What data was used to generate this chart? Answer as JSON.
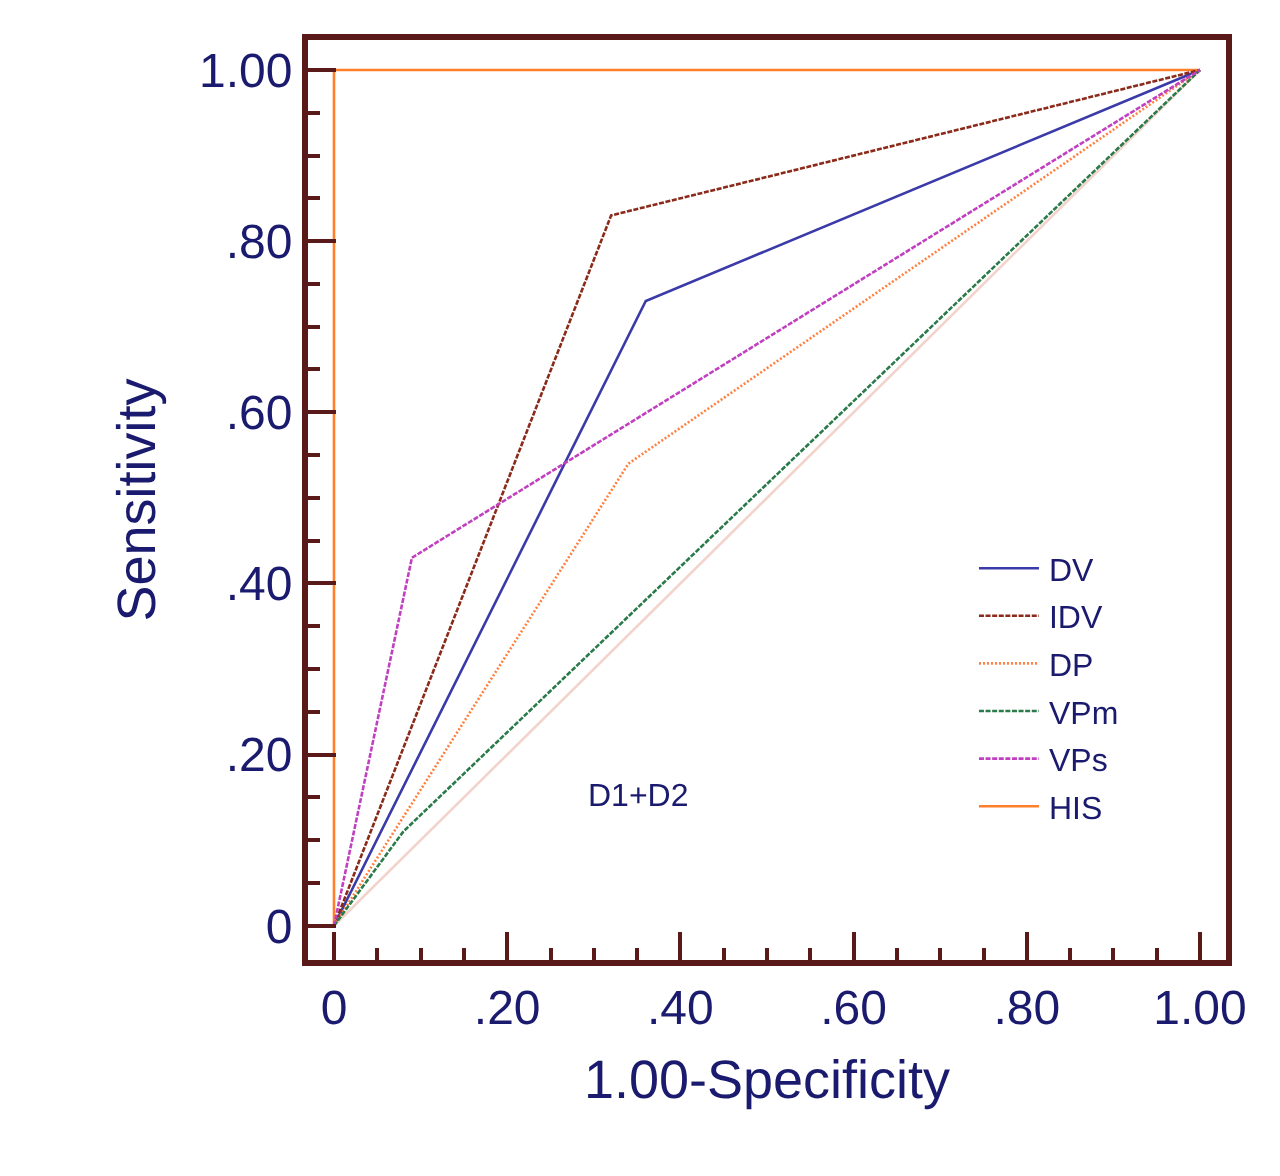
{
  "chart_data": {
    "type": "line",
    "xlabel": "1.00-Specificity",
    "ylabel": "Sensitivity",
    "xlim": [
      -0.03,
      1.03
    ],
    "ylim": [
      -0.04,
      1.035
    ],
    "xticks": [
      {
        "value": 0,
        "label": "0"
      },
      {
        "value": 0.05,
        "label": null
      },
      {
        "value": 0.1,
        "label": null
      },
      {
        "value": 0.15,
        "label": null
      },
      {
        "value": 0.2,
        "label": ".20"
      },
      {
        "value": 0.25,
        "label": null
      },
      {
        "value": 0.3,
        "label": null
      },
      {
        "value": 0.35,
        "label": null
      },
      {
        "value": 0.4,
        "label": ".40"
      },
      {
        "value": 0.45,
        "label": null
      },
      {
        "value": 0.5,
        "label": null
      },
      {
        "value": 0.55,
        "label": null
      },
      {
        "value": 0.6,
        "label": ".60"
      },
      {
        "value": 0.65,
        "label": null
      },
      {
        "value": 0.7,
        "label": null
      },
      {
        "value": 0.75,
        "label": null
      },
      {
        "value": 0.8,
        "label": ".80"
      },
      {
        "value": 0.85,
        "label": null
      },
      {
        "value": 0.9,
        "label": null
      },
      {
        "value": 0.95,
        "label": null
      },
      {
        "value": 1,
        "label": "1.00"
      }
    ],
    "yticks": [
      {
        "value": 0,
        "label": "0"
      },
      {
        "value": 0.05,
        "label": null
      },
      {
        "value": 0.1,
        "label": null
      },
      {
        "value": 0.15,
        "label": null
      },
      {
        "value": 0.2,
        "label": ".20"
      },
      {
        "value": 0.25,
        "label": null
      },
      {
        "value": 0.3,
        "label": null
      },
      {
        "value": 0.35,
        "label": null
      },
      {
        "value": 0.4,
        "label": ".40"
      },
      {
        "value": 0.45,
        "label": null
      },
      {
        "value": 0.5,
        "label": null
      },
      {
        "value": 0.55,
        "label": null
      },
      {
        "value": 0.6,
        "label": ".60"
      },
      {
        "value": 0.65,
        "label": null
      },
      {
        "value": 0.7,
        "label": null
      },
      {
        "value": 0.75,
        "label": null
      },
      {
        "value": 0.8,
        "label": ".80"
      },
      {
        "value": 0.85,
        "label": null
      },
      {
        "value": 0.9,
        "label": null
      },
      {
        "value": 0.95,
        "label": null
      },
      {
        "value": 1,
        "label": "1.00"
      }
    ],
    "grid": false,
    "legend": "bottom right",
    "marker": "none",
    "annotations": [
      "D1+D2"
    ],
    "series": [
      {
        "color": "#f2d4cc",
        "line_style": "solid",
        "x": [
          0,
          1
        ],
        "values": [
          0,
          1
        ]
      },
      {
        "name": "DV",
        "color": "#3a3aa8",
        "line_style": "solid",
        "x": [
          0,
          0.36,
          1
        ],
        "values": [
          0,
          0.73,
          1
        ]
      },
      {
        "name": "IDV",
        "color": "#8b2a1a",
        "line_style": "dashed",
        "x": [
          0,
          0.32,
          1
        ],
        "values": [
          0,
          0.83,
          1
        ]
      },
      {
        "name": "DP",
        "color": "#ff8040",
        "line_style": "dotted",
        "x": [
          0,
          0.34,
          1
        ],
        "values": [
          0,
          0.54,
          1
        ]
      },
      {
        "name": "VPm",
        "color": "#2a7a4a",
        "line_style": "dashed",
        "x": [
          0,
          0.08,
          1
        ],
        "values": [
          0,
          0.11,
          1
        ]
      },
      {
        "name": "VPs",
        "color": "#c040c0",
        "line_style": "dashed",
        "x": [
          0,
          0.09,
          1
        ],
        "values": [
          0,
          0.43,
          1
        ]
      },
      {
        "name": "HIS",
        "color": "#ff7f2a",
        "line_style": "solid",
        "x": [
          0,
          0,
          1
        ],
        "values": [
          0,
          1,
          1
        ]
      }
    ]
  }
}
